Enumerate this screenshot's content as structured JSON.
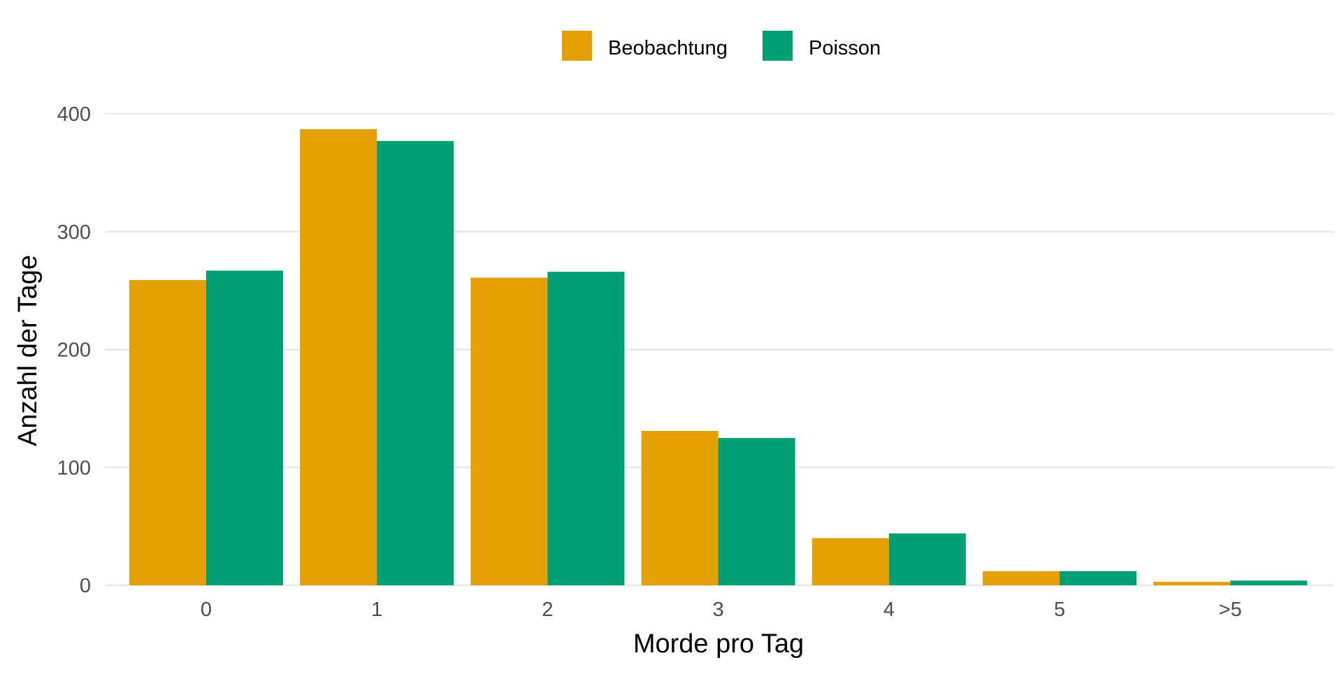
{
  "chart_data": {
    "type": "bar",
    "title": "",
    "xlabel": "Morde pro Tag",
    "ylabel": "Anzahl der Tage",
    "categories": [
      "0",
      "1",
      "2",
      "3",
      "4",
      "5",
      ">5"
    ],
    "series": [
      {
        "name": "Beobachtung",
        "color": "#E69F00",
        "values": [
          259,
          387,
          261,
          131,
          40,
          12,
          3
        ]
      },
      {
        "name": "Poisson",
        "color": "#009E73",
        "values": [
          267,
          377,
          266,
          125,
          44,
          12,
          4
        ]
      }
    ],
    "ylim": [
      0,
      400
    ],
    "yticks": [
      0,
      100,
      200,
      300,
      400
    ],
    "grid": true,
    "legend_position": "top"
  }
}
